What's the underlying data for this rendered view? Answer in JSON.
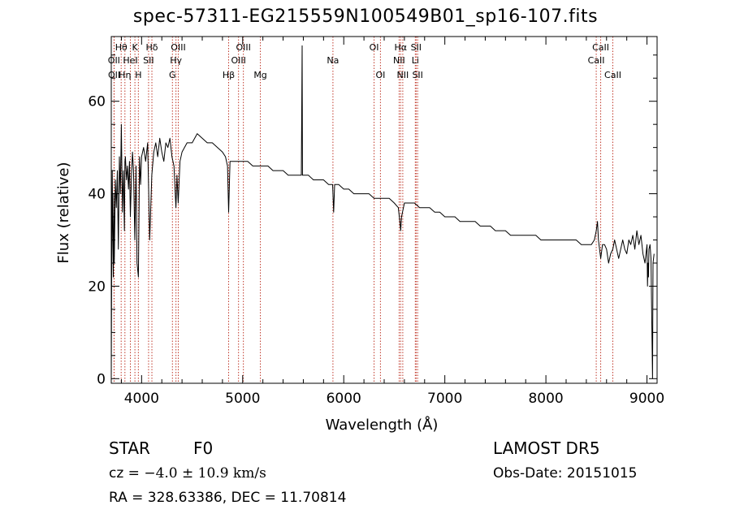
{
  "title": "spec-57311-EG215559N100549B01_sp16-107.fits",
  "info": {
    "object_class": "STAR",
    "subclass": "F0",
    "survey": "LAMOST DR5",
    "cz_label": "cz = ",
    "cz_value": "−4.0 ± 10.9 km/s",
    "obs_date": "Obs-Date: 20151015",
    "radec": "RA = 328.63386, DEC =  11.70814"
  },
  "chart_data": {
    "type": "line",
    "title": "spec-57311-EG215559N100549B01_sp16-107.fits",
    "xlabel": "Wavelength (Å)",
    "ylabel": "Flux (relative)",
    "xlim": [
      3700,
      9100
    ],
    "ylim": [
      -1,
      74
    ],
    "xticks": [
      4000,
      5000,
      6000,
      7000,
      8000,
      9000
    ],
    "yticks": [
      0,
      20,
      40,
      60
    ],
    "series": [
      {
        "x": [
          3700,
          3705,
          3710,
          3715,
          3720,
          3725,
          3730,
          3740,
          3750,
          3760,
          3770,
          3780,
          3790,
          3800,
          3810,
          3820,
          3830,
          3835,
          3840,
          3850,
          3860,
          3870,
          3880,
          3889,
          3900,
          3910,
          3920,
          3933,
          3945,
          3955,
          3968,
          3980,
          3990,
          4000,
          4020,
          4040,
          4060,
          4080,
          4101,
          4120,
          4140,
          4160,
          4180,
          4200,
          4220,
          4240,
          4260,
          4280,
          4300,
          4320,
          4340,
          4350,
          4362,
          4380,
          4400,
          4450,
          4500,
          4550,
          4600,
          4650,
          4700,
          4750,
          4800,
          4830,
          4850,
          4861,
          4875,
          4900,
          4950,
          5000,
          5050,
          5100,
          5150,
          5200,
          5250,
          5300,
          5350,
          5400,
          5450,
          5500,
          5550,
          5580,
          5588,
          5592,
          5600,
          5650,
          5700,
          5750,
          5800,
          5850,
          5890,
          5900,
          5910,
          5950,
          6000,
          6050,
          6100,
          6150,
          6200,
          6250,
          6300,
          6350,
          6400,
          6450,
          6500,
          6540,
          6555,
          6563,
          6572,
          6600,
          6650,
          6700,
          6750,
          6800,
          6850,
          6900,
          6950,
          7000,
          7050,
          7100,
          7150,
          7200,
          7250,
          7300,
          7350,
          7400,
          7450,
          7500,
          7550,
          7600,
          7650,
          7700,
          7750,
          7800,
          7850,
          7900,
          7950,
          8000,
          8050,
          8100,
          8150,
          8200,
          8250,
          8300,
          8350,
          8400,
          8450,
          8480,
          8498,
          8510,
          8520,
          8542,
          8560,
          8580,
          8600,
          8620,
          8640,
          8662,
          8680,
          8700,
          8720,
          8740,
          8760,
          8780,
          8800,
          8820,
          8840,
          8860,
          8880,
          8900,
          8920,
          8940,
          8960,
          8980,
          9000,
          9005,
          9010,
          9015,
          9020,
          9030,
          9040,
          9050,
          9055,
          9060,
          9070
        ],
        "y": [
          0,
          28,
          45,
          30,
          22,
          40,
          25,
          43,
          37,
          45,
          28,
          48,
          40,
          55,
          36,
          45,
          32,
          47,
          48,
          43,
          46,
          41,
          47,
          35,
          44,
          49,
          45,
          30,
          46,
          25,
          22,
          48,
          42,
          48,
          50,
          47,
          51,
          30,
          44,
          49,
          51,
          48,
          52,
          49,
          47,
          51,
          50,
          52,
          48,
          46,
          37,
          44,
          38,
          47,
          49,
          51,
          51,
          53,
          52,
          51,
          51,
          50,
          49,
          48,
          46,
          36,
          47,
          47,
          47,
          47,
          47,
          46,
          46,
          46,
          46,
          45,
          45,
          45,
          44,
          44,
          44,
          44,
          72,
          44,
          44,
          44,
          43,
          43,
          43,
          42,
          42,
          36,
          42,
          42,
          41,
          41,
          40,
          40,
          40,
          40,
          39,
          39,
          39,
          39,
          38,
          37,
          34,
          32,
          35,
          38,
          38,
          38,
          37,
          37,
          37,
          36,
          36,
          35,
          35,
          35,
          34,
          34,
          34,
          34,
          33,
          33,
          33,
          32,
          32,
          32,
          31,
          31,
          31,
          31,
          31,
          31,
          30,
          30,
          30,
          30,
          30,
          30,
          30,
          30,
          29,
          29,
          29,
          30,
          32,
          34,
          30,
          26,
          29,
          29,
          28,
          25,
          27,
          28,
          30,
          28,
          26,
          28,
          30,
          28,
          27,
          30,
          29,
          31,
          28,
          32,
          29,
          31,
          27,
          25,
          29,
          20,
          25,
          22,
          28,
          29,
          26,
          8,
          0,
          25,
          27
        ]
      }
    ],
    "lines": [
      {
        "label": "Hθ",
        "wave": 3798,
        "row": 1
      },
      {
        "label": "OII",
        "wave": 3727,
        "row": 2
      },
      {
        "label": "OII",
        "wave": 3729,
        "row": 3
      },
      {
        "label": "Hη",
        "wave": 3835,
        "row": 3
      },
      {
        "label": "K",
        "wave": 3934,
        "row": 1
      },
      {
        "label": "HeI",
        "wave": 3889,
        "row": 2
      },
      {
        "label": "H",
        "wave": 3968,
        "row": 3
      },
      {
        "label": "Hδ",
        "wave": 4102,
        "row": 1
      },
      {
        "label": "SII",
        "wave": 4069,
        "row": 2
      },
      {
        "label": "OIII",
        "wave": 4363,
        "row": 1
      },
      {
        "label": "Hγ",
        "wave": 4340,
        "row": 2
      },
      {
        "label": "G",
        "wave": 4305,
        "row": 3
      },
      {
        "label": "Hβ",
        "wave": 4861,
        "row": 3
      },
      {
        "label": "OIII",
        "wave": 5007,
        "row": 1
      },
      {
        "label": "OIII",
        "wave": 4959,
        "row": 2
      },
      {
        "label": "Mg",
        "wave": 5175,
        "row": 3
      },
      {
        "label": "Na",
        "wave": 5893,
        "row": 2
      },
      {
        "label": "OI",
        "wave": 6300,
        "row": 1
      },
      {
        "label": "OI",
        "wave": 6363,
        "row": 3
      },
      {
        "label": "Hα",
        "wave": 6563,
        "row": 1
      },
      {
        "label": "NII",
        "wave": 6548,
        "row": 2
      },
      {
        "label": "NII",
        "wave": 6584,
        "row": 3
      },
      {
        "label": "SII",
        "wave": 6716,
        "row": 1
      },
      {
        "label": "Li",
        "wave": 6708,
        "row": 2
      },
      {
        "label": "SII",
        "wave": 6731,
        "row": 3
      },
      {
        "label": "CaII",
        "wave": 8542,
        "row": 1
      },
      {
        "label": "CaII",
        "wave": 8498,
        "row": 2
      },
      {
        "label": "CaII",
        "wave": 8662,
        "row": 3
      }
    ]
  }
}
